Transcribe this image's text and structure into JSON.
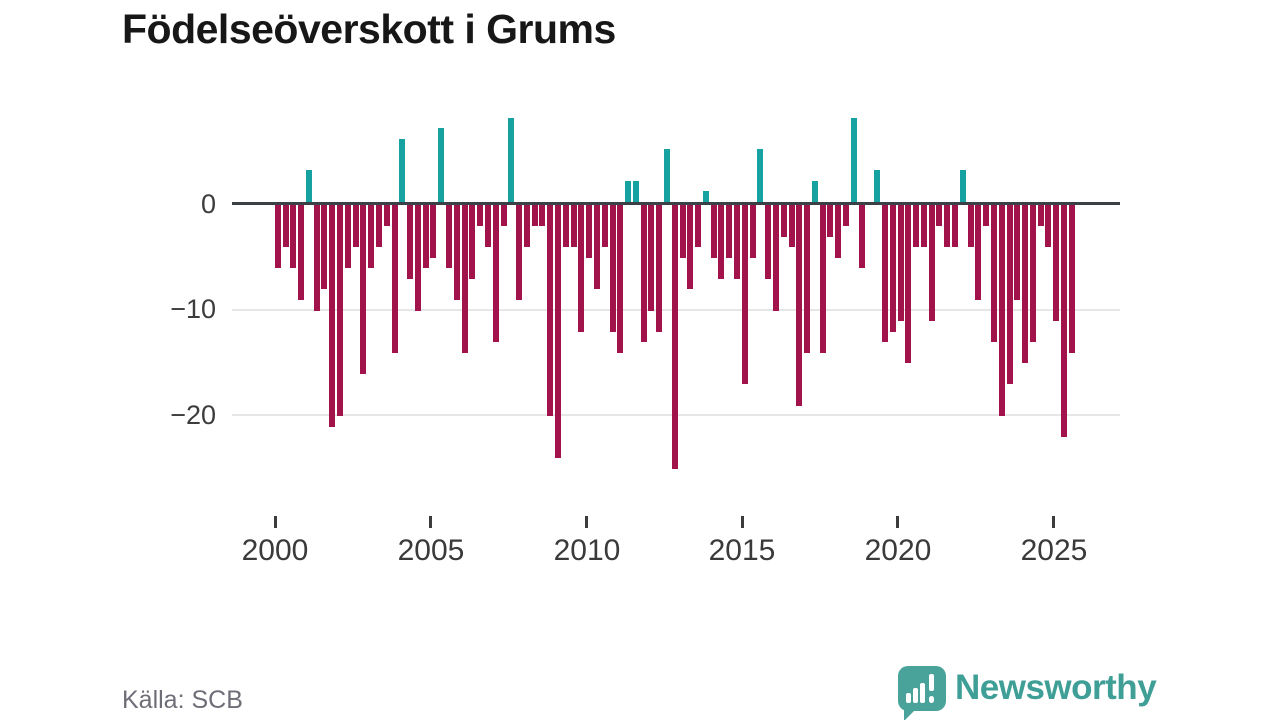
{
  "title": "Födelseöverskott i Grums",
  "source": "Källa: SCB",
  "branding": {
    "name": "Newsworthy",
    "icon": "bar-chart-speech-bubble-icon"
  },
  "colors": {
    "negative_bar": "#a3134b",
    "positive_bar": "#16a2a0",
    "axis": "#3a4045",
    "grid": "#e6e6e6",
    "tick_text": "#3a3a3a",
    "muted_text": "#6e6e78",
    "brand_teal": "#4aa39a",
    "brand_text_teal": "#3f9f96",
    "title_text": "#171717"
  },
  "chart_data": {
    "type": "bar",
    "title": "Födelseöverskott i Grums",
    "xlabel": "",
    "ylabel": "",
    "period": "quarterly",
    "start_period": "2000Q1",
    "end_period": "2025Q3",
    "ylim": [
      -27,
      9
    ],
    "grid": "horizontal gridlines at -10 and -20, bold zero line",
    "legend": "none",
    "y_ticks": [
      {
        "value": 0,
        "label": "0"
      },
      {
        "value": -10,
        "label": "−10"
      },
      {
        "value": -20,
        "label": "−20"
      }
    ],
    "x_ticks": [
      {
        "year": 2000,
        "label": "2000"
      },
      {
        "year": 2005,
        "label": "2005"
      },
      {
        "year": 2010,
        "label": "2010"
      },
      {
        "year": 2015,
        "label": "2015"
      },
      {
        "year": 2020,
        "label": "2020"
      },
      {
        "year": 2025,
        "label": "2025"
      }
    ],
    "values": [
      -6,
      -4,
      -6,
      -9,
      3,
      -10,
      -8,
      -21,
      -20,
      -6,
      -4,
      -16,
      -6,
      -4,
      -2,
      -14,
      6,
      -7,
      -10,
      -6,
      -5,
      7,
      -6,
      -9,
      -14,
      -7,
      -2,
      -4,
      -13,
      -2,
      8,
      -9,
      -4,
      -2,
      -2,
      -20,
      -24,
      -4,
      -4,
      -12,
      -5,
      -8,
      -4,
      -12,
      -14,
      2,
      2,
      -13,
      -10,
      -12,
      5,
      -25,
      -5,
      -8,
      -4,
      1,
      -5,
      -7,
      -5,
      -7,
      -17,
      -5,
      5,
      -7,
      -10,
      -3,
      -4,
      -19,
      -14,
      2,
      -14,
      -3,
      -5,
      -2,
      8,
      -6,
      0,
      3,
      -13,
      -12,
      -11,
      -15,
      -4,
      -4,
      -11,
      -2,
      -4,
      -4,
      3,
      -4,
      -9,
      -2,
      -13,
      -20,
      -17,
      -9,
      -15,
      -13,
      -2,
      -4,
      -11,
      -22,
      -14
    ]
  }
}
